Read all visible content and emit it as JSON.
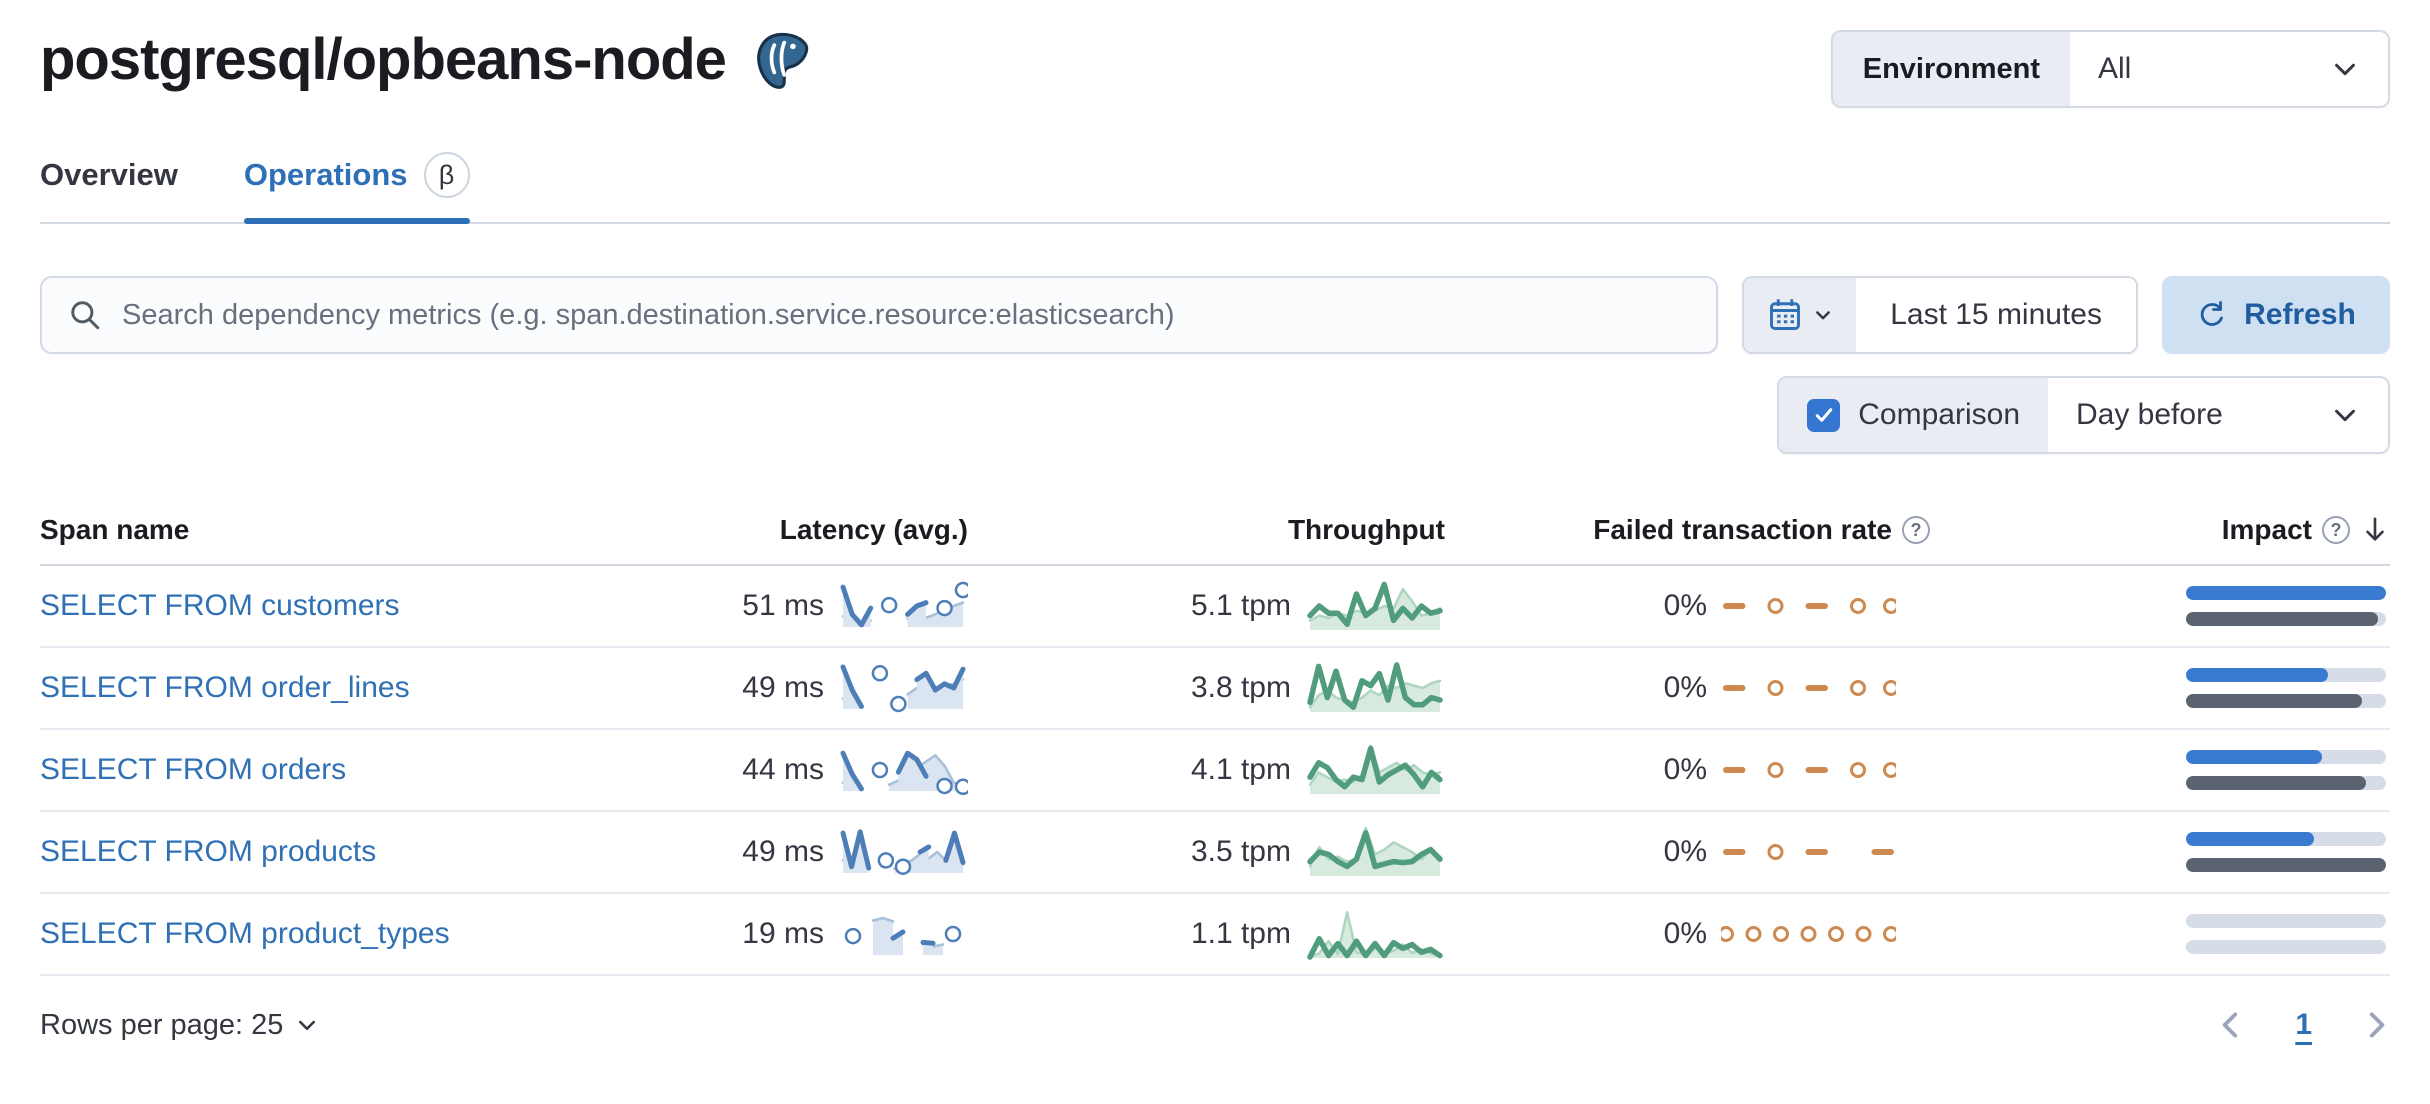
{
  "header": {
    "title": "postgresql/opbeans-node",
    "environment_label": "Environment",
    "environment_value": "All"
  },
  "tabs": [
    {
      "label": "Overview"
    },
    {
      "label": "Operations",
      "beta_badge": "β"
    }
  ],
  "toolbar": {
    "search_placeholder": "Search dependency metrics (e.g. span.destination.service.resource:elasticsearch)",
    "time_range": "Last 15 minutes",
    "refresh_label": "Refresh",
    "comparison_label": "Comparison",
    "comparison_checked": true,
    "comparison_value": "Day before"
  },
  "table": {
    "columns": [
      "Span name",
      "Latency (avg.)",
      "Throughput",
      "Failed transaction rate",
      "Impact"
    ],
    "rows": [
      {
        "span_name": "SELECT FROM customers",
        "latency": "51 ms",
        "throughput": "5.1 tpm",
        "failed_rate": "0%",
        "impact": {
          "current": 100,
          "previous": 96
        },
        "sparklines": {
          "latency": {
            "current": [
              0.95,
              0.3,
              0.05,
              0.45,
              null,
              0.52,
              null,
              0.3,
              0.5,
              0.58,
              null,
              0.45,
              null,
              0.88
            ],
            "previous": [
              0.25,
              0.12,
              0.06,
              0.15,
              null,
              null,
              null,
              0.2,
              0.28,
              0.22,
              0.3,
              0.42,
              0.5,
              0.58
            ]
          },
          "throughput": {
            "current": [
              0.3,
              0.5,
              0.35,
              0.35,
              0.12,
              0.75,
              0.3,
              0.45,
              0.95,
              0.2,
              0.45,
              0.25,
              0.5,
              0.35,
              0.4
            ],
            "previous": [
              0.2,
              0.3,
              0.25,
              0.35,
              0.3,
              0.4,
              0.35,
              0.4,
              0.5,
              0.45,
              0.85,
              0.6,
              0.3,
              0.35,
              0.45
            ]
          },
          "failed": {
            "points": [
              0.5,
              0.5,
              null,
              0.5,
              null,
              0.5,
              0.5,
              null,
              0.5,
              null,
              0.5
            ]
          }
        }
      },
      {
        "span_name": "SELECT FROM order_lines",
        "latency": "49 ms",
        "throughput": "3.8 tpm",
        "failed_rate": "0%",
        "impact": {
          "current": 71,
          "previous": 88
        },
        "sparklines": {
          "latency": {
            "current": [
              1.0,
              0.45,
              0.06,
              null,
              0.85,
              null,
              0.12,
              null,
              0.7,
              0.85,
              0.45,
              0.6,
              0.5,
              0.95
            ],
            "previous": [
              0.25,
              0.1,
              0.05,
              null,
              null,
              null,
              null,
              0.35,
              0.5,
              0.4,
              0.35,
              0.55,
              0.6,
              0.7
            ]
          },
          "throughput": {
            "current": [
              0.2,
              0.95,
              0.3,
              0.85,
              0.25,
              0.1,
              0.65,
              0.55,
              0.8,
              0.25,
              0.98,
              0.3,
              0.15,
              0.15,
              0.3,
              0.25
            ],
            "previous": [
              0.1,
              0.35,
              0.45,
              0.3,
              0.25,
              0.2,
              0.3,
              0.45,
              0.35,
              0.55,
              0.5,
              0.6,
              0.55,
              0.5,
              0.6,
              0.65
            ]
          },
          "failed": {
            "points": [
              0.5,
              0.5,
              null,
              0.5,
              null,
              0.5,
              0.5,
              null,
              0.5,
              null,
              0.5
            ]
          }
        }
      },
      {
        "span_name": "SELECT FROM orders",
        "latency": "44 ms",
        "throughput": "4.1 tpm",
        "failed_rate": "0%",
        "impact": {
          "current": 68,
          "previous": 90
        },
        "sparklines": {
          "latency": {
            "current": [
              0.9,
              0.4,
              0.05,
              null,
              0.5,
              null,
              0.45,
              0.9,
              0.75,
              0.35,
              null,
              0.12,
              null,
              0.1
            ],
            "previous": [
              0.2,
              0.1,
              0.06,
              null,
              null,
              0.15,
              0.25,
              0.4,
              0.55,
              0.7,
              0.85,
              0.6,
              0.2,
              0.1
            ]
          },
          "throughput": {
            "current": [
              0.35,
              0.65,
              0.55,
              0.3,
              0.15,
              0.35,
              0.3,
              0.95,
              0.25,
              0.4,
              0.5,
              0.6,
              0.4,
              0.15,
              0.45,
              0.3
            ],
            "previous": [
              0.2,
              0.45,
              0.35,
              0.25,
              0.3,
              0.25,
              0.4,
              1.0,
              0.45,
              0.55,
              0.65,
              0.5,
              0.6,
              0.45,
              0.4,
              0.45
            ]
          },
          "failed": {
            "points": [
              0.5,
              0.5,
              null,
              0.5,
              null,
              0.5,
              0.5,
              null,
              0.5,
              null,
              0.5
            ]
          }
        }
      },
      {
        "span_name": "SELECT FROM products",
        "latency": "49 ms",
        "throughput": "3.5 tpm",
        "failed_rate": "0%",
        "impact": {
          "current": 64,
          "previous": 100
        },
        "sparklines": {
          "latency": {
            "current": [
              0.95,
              0.15,
              0.98,
              0.12,
              null,
              0.3,
              null,
              0.15,
              null,
              0.5,
              0.62,
              null,
              0.3,
              0.95,
              0.25
            ],
            "previous": [
              0.3,
              0.1,
              0.2,
              0.08,
              null,
              null,
              0.1,
              0.2,
              0.3,
              0.45,
              0.35,
              0.5,
              0.3,
              0.55,
              0.2
            ]
          },
          "throughput": {
            "current": [
              0.3,
              0.5,
              0.45,
              0.3,
              0.2,
              0.35,
              0.9,
              0.2,
              0.25,
              0.3,
              0.28,
              0.3,
              0.45,
              0.55,
              0.35
            ],
            "previous": [
              0.2,
              0.6,
              0.35,
              0.4,
              0.3,
              0.35,
              1.0,
              0.45,
              0.55,
              0.7,
              0.6,
              0.5,
              0.35,
              0.55,
              0.4
            ]
          },
          "failed": {
            "points": [
              0.5,
              0.5,
              null,
              0.5,
              null,
              0.5,
              0.5,
              null,
              null,
              0.5,
              0.5
            ]
          }
        }
      },
      {
        "span_name": "SELECT FROM product_types",
        "latency": "19 ms",
        "throughput": "1.1 tpm",
        "failed_rate": "0%",
        "impact": {
          "current": 0,
          "previous": 0
        },
        "sparklines": {
          "latency": {
            "current": [
              null,
              0.45,
              null,
              null,
              null,
              0.4,
              0.55,
              null,
              0.3,
              0.28,
              null,
              0.5,
              null
            ],
            "previous": [
              null,
              null,
              null,
              0.82,
              0.88,
              0.8,
              null,
              null,
              0.25,
              0.2,
              0.25,
              null,
              null
            ]
          },
          "throughput": {
            "current": [
              0.02,
              0.4,
              0.05,
              0.3,
              0.05,
              0.35,
              0.05,
              0.3,
              0.05,
              0.32,
              0.2,
              0.28,
              0.12,
              0.18,
              0.05
            ],
            "previous": [
              0.02,
              0.1,
              0.35,
              0.08,
              0.95,
              0.12,
              0.08,
              0.2,
              0.1,
              0.15,
              0.28,
              0.1,
              0.18,
              0.1,
              0.04
            ]
          },
          "failed": {
            "points": [
              0.5,
              null,
              0.5,
              null,
              0.5,
              null,
              0.5,
              null,
              0.5,
              null,
              0.5,
              null,
              0.5
            ]
          }
        }
      }
    ]
  },
  "footer": {
    "rows_per_page_label": "Rows per page: 25",
    "page": "1"
  },
  "colors": {
    "accent_blue": "#2e70b8",
    "link_blue": "#3070b5",
    "impact_blue": "#3a7bd2",
    "impact_gray": "#5b6270",
    "latency_spark": "#4d7eb7",
    "throughput_spark": "#519c7c",
    "failed_spark": "#cd8a50"
  }
}
